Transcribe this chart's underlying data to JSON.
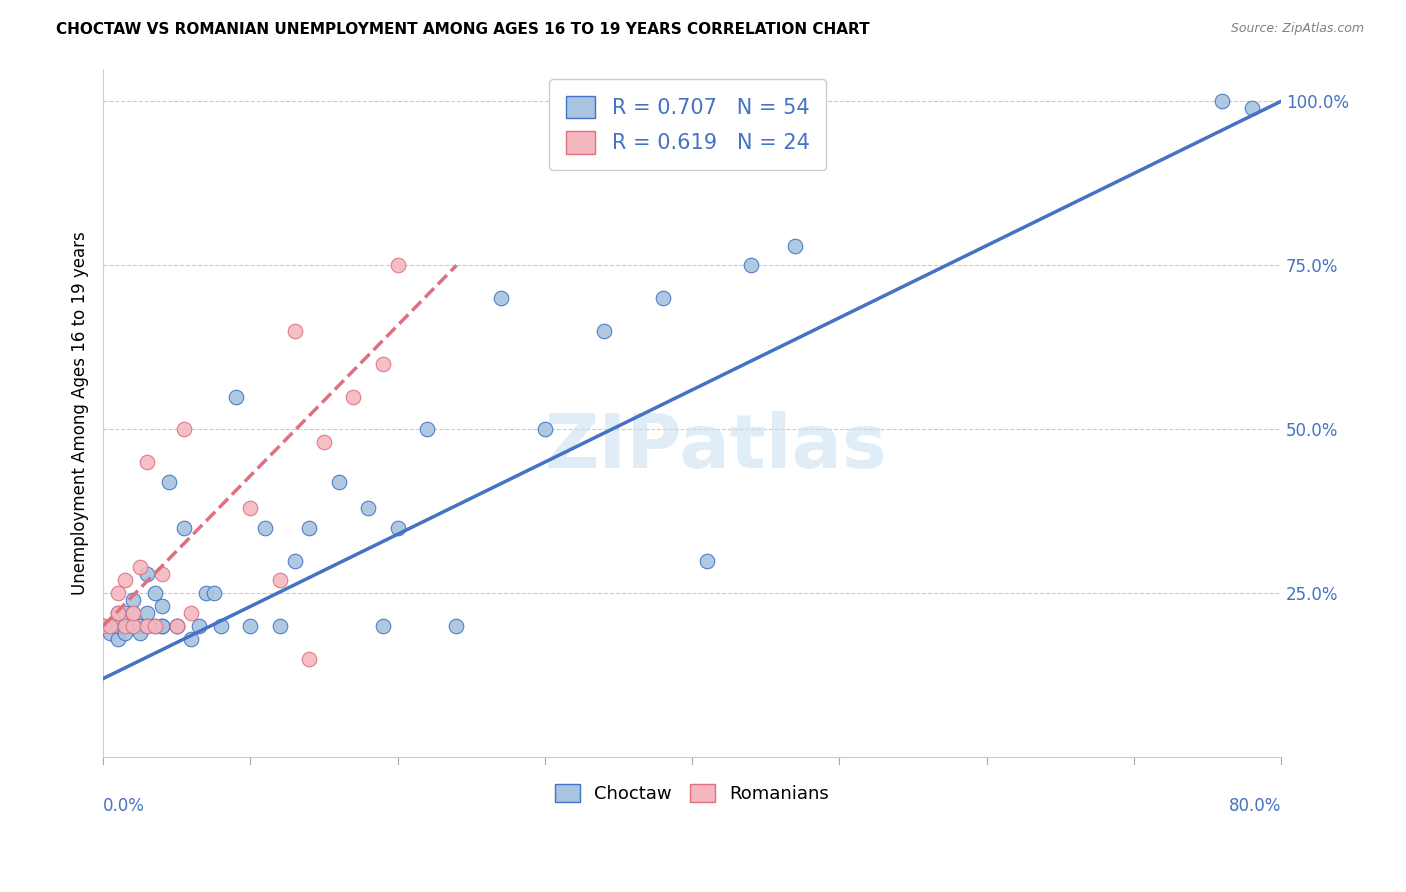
{
  "title": "CHOCTAW VS ROMANIAN UNEMPLOYMENT AMONG AGES 16 TO 19 YEARS CORRELATION CHART",
  "source": "Source: ZipAtlas.com",
  "ylabel": "Unemployment Among Ages 16 to 19 years",
  "watermark": "ZIPatlas",
  "legend_choctaw_r": "R = 0.707",
  "legend_choctaw_n": "N = 54",
  "legend_romanian_r": "R = 0.619",
  "legend_romanian_n": "N = 24",
  "choctaw_color": "#a8c4e0",
  "romanian_color": "#f4b8c0",
  "choctaw_line_color": "#4472c4",
  "romanian_line_color": "#e07080",
  "xlim": [
    0.0,
    0.8
  ],
  "ylim": [
    0.0,
    1.05
  ],
  "xtick_left": "0.0%",
  "xtick_right": "80.0%",
  "ytick_values": [
    0.25,
    0.5,
    0.75,
    1.0
  ],
  "ytick_labels": [
    "25.0%",
    "50.0%",
    "75.0%",
    "100.0%"
  ],
  "choctaw_x": [
    0.0,
    0.005,
    0.01,
    0.01,
    0.01,
    0.01,
    0.015,
    0.015,
    0.015,
    0.02,
    0.02,
    0.02,
    0.02,
    0.025,
    0.025,
    0.025,
    0.03,
    0.03,
    0.03,
    0.035,
    0.035,
    0.04,
    0.04,
    0.04,
    0.045,
    0.05,
    0.05,
    0.055,
    0.06,
    0.065,
    0.07,
    0.075,
    0.08,
    0.09,
    0.1,
    0.11,
    0.12,
    0.13,
    0.14,
    0.16,
    0.18,
    0.19,
    0.2,
    0.22,
    0.24,
    0.27,
    0.3,
    0.34,
    0.38,
    0.41,
    0.44,
    0.47,
    0.76,
    0.78
  ],
  "choctaw_y": [
    0.2,
    0.19,
    0.2,
    0.18,
    0.22,
    0.2,
    0.2,
    0.22,
    0.19,
    0.2,
    0.22,
    0.24,
    0.2,
    0.2,
    0.2,
    0.19,
    0.22,
    0.2,
    0.28,
    0.25,
    0.2,
    0.23,
    0.2,
    0.2,
    0.42,
    0.2,
    0.2,
    0.35,
    0.18,
    0.2,
    0.25,
    0.25,
    0.2,
    0.55,
    0.2,
    0.35,
    0.2,
    0.3,
    0.35,
    0.42,
    0.38,
    0.2,
    0.35,
    0.5,
    0.2,
    0.7,
    0.5,
    0.65,
    0.7,
    0.3,
    0.75,
    0.78,
    1.0,
    0.99
  ],
  "romanian_x": [
    0.0,
    0.005,
    0.01,
    0.01,
    0.015,
    0.015,
    0.02,
    0.02,
    0.025,
    0.03,
    0.03,
    0.035,
    0.04,
    0.05,
    0.055,
    0.06,
    0.1,
    0.12,
    0.13,
    0.14,
    0.15,
    0.17,
    0.19,
    0.2
  ],
  "romanian_y": [
    0.2,
    0.2,
    0.22,
    0.25,
    0.2,
    0.27,
    0.2,
    0.22,
    0.29,
    0.2,
    0.45,
    0.2,
    0.28,
    0.2,
    0.5,
    0.22,
    0.38,
    0.27,
    0.65,
    0.15,
    0.48,
    0.55,
    0.6,
    0.75
  ],
  "choctaw_trend": [
    0.0,
    0.8,
    0.12,
    1.0
  ],
  "romanian_trend": [
    0.0,
    0.24,
    0.2,
    0.75
  ]
}
